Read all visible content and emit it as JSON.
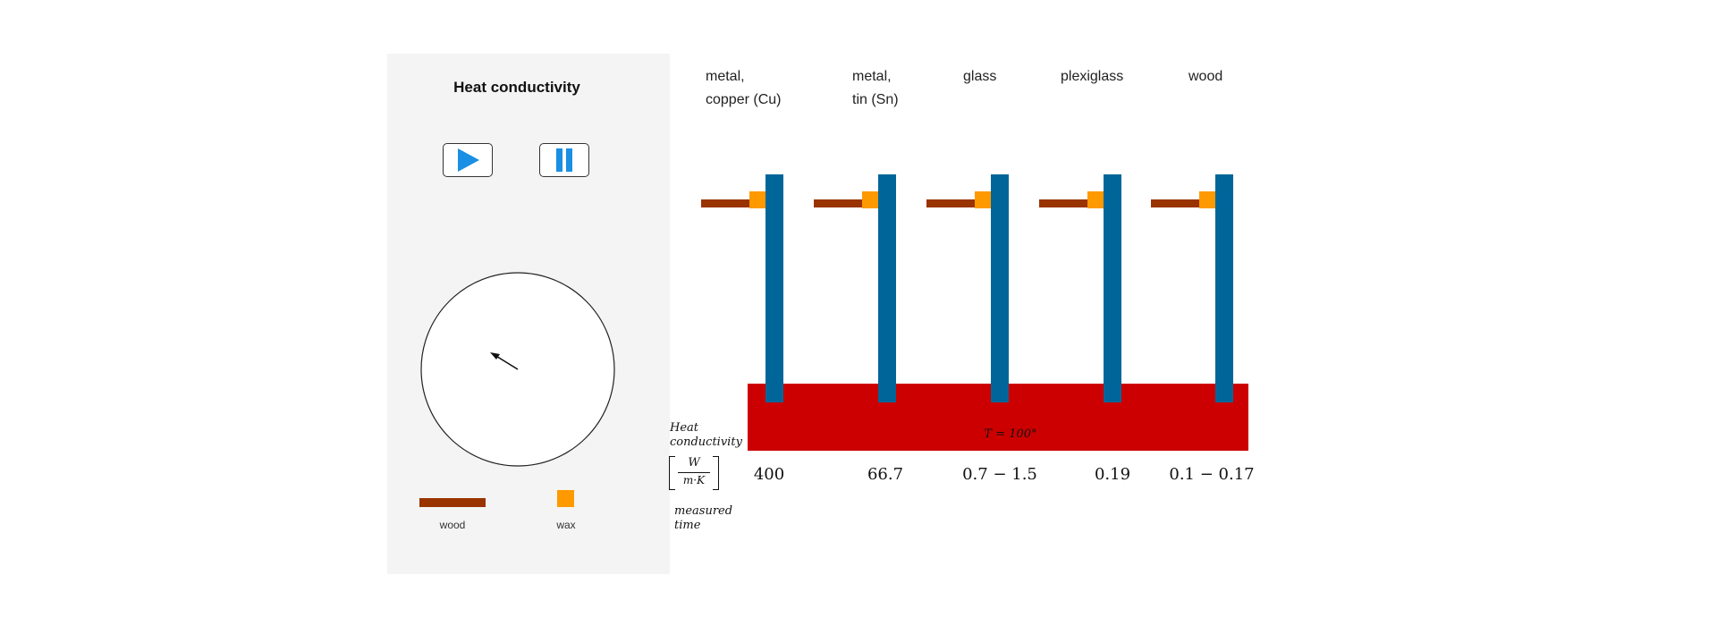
{
  "panel": {
    "title": "Heat conductivity",
    "legend": {
      "wood_label": "wood",
      "wax_label": "wax"
    }
  },
  "simulation": {
    "materials": [
      {
        "label": "metal,\ncopper (Cu)",
        "conductivity": "400"
      },
      {
        "label": "metal,\ntin (Sn)",
        "conductivity": "66.7"
      },
      {
        "label": "glass",
        "conductivity": "0.7 − 1.5"
      },
      {
        "label": "plexiglass",
        "conductivity": "0.19"
      },
      {
        "label": "wood",
        "conductivity": "0.1 − 0.17"
      }
    ],
    "temperature_label": "T = 100°",
    "row_label_conductivity": "Heat\nconductivity",
    "unit_numerator": "W",
    "unit_denominator": "m·K",
    "row_label_time": "measured\ntime"
  },
  "colors": {
    "rod": "#006699",
    "wood": "#993300",
    "wax": "#ff9900",
    "hot_plate": "#cc0000",
    "play_icon": "#1a8fe3",
    "panel_bg": "#f4f4f4"
  },
  "icons": {
    "play": "play-icon",
    "pause": "pause-icon",
    "clock_hand": "arrow-icon"
  }
}
